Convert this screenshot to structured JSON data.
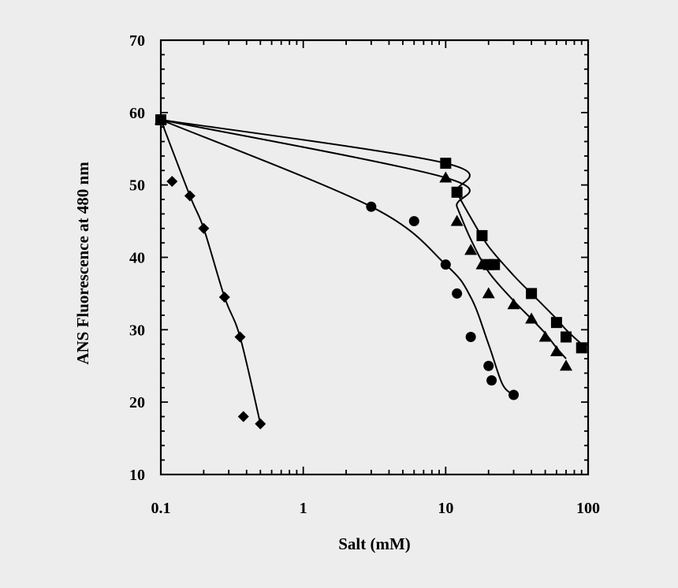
{
  "chart_data": {
    "type": "scatter",
    "xscale": "log",
    "title": "",
    "xlabel": "Salt (mM)",
    "ylabel": "ANS Fluorescence at 480 nm",
    "xlim": [
      0.1,
      100
    ],
    "ylim": [
      10,
      70
    ],
    "x_tick_labels": [
      "0.1",
      "1",
      "10",
      "100"
    ],
    "y_tick_labels": [
      "10",
      "20",
      "30",
      "40",
      "50",
      "60",
      "70"
    ],
    "grid": false,
    "legend": "none",
    "series": [
      {
        "name": "diamonds",
        "marker": "diamond",
        "points": [
          [
            0.1,
            59
          ],
          [
            0.12,
            50.5
          ],
          [
            0.16,
            48.5
          ],
          [
            0.2,
            44
          ],
          [
            0.28,
            34.5
          ],
          [
            0.36,
            29
          ],
          [
            0.38,
            18
          ],
          [
            0.5,
            17
          ]
        ],
        "curve": [
          [
            0.1,
            59
          ],
          [
            0.16,
            48.5
          ],
          [
            0.2,
            44
          ],
          [
            0.28,
            34.5
          ],
          [
            0.36,
            29
          ],
          [
            0.5,
            17
          ]
        ]
      },
      {
        "name": "circles",
        "marker": "circle",
        "points": [
          [
            0.1,
            59
          ],
          [
            3,
            47
          ],
          [
            6,
            45
          ],
          [
            10,
            39
          ],
          [
            12,
            35
          ],
          [
            15,
            29
          ],
          [
            20,
            25
          ],
          [
            21,
            23
          ],
          [
            30,
            21
          ]
        ],
        "curve": [
          [
            0.1,
            59
          ],
          [
            3,
            47
          ],
          [
            10,
            39
          ],
          [
            15,
            34.5
          ],
          [
            20,
            28
          ],
          [
            25,
            22.5
          ],
          [
            30,
            21
          ]
        ]
      },
      {
        "name": "triangles",
        "marker": "triangle",
        "points": [
          [
            0.1,
            59
          ],
          [
            10,
            51
          ],
          [
            12,
            45
          ],
          [
            15,
            41
          ],
          [
            18,
            39
          ],
          [
            20,
            35
          ],
          [
            30,
            33.5
          ],
          [
            40,
            31.5
          ],
          [
            50,
            29
          ],
          [
            60,
            27
          ],
          [
            70,
            25
          ]
        ],
        "curve": [
          [
            0.1,
            59
          ],
          [
            10,
            51
          ],
          [
            12,
            47
          ],
          [
            15,
            42.5
          ],
          [
            20,
            38
          ],
          [
            30,
            34
          ],
          [
            40,
            31.5
          ],
          [
            50,
            29.5
          ],
          [
            60,
            27.5
          ],
          [
            70,
            26
          ]
        ]
      },
      {
        "name": "squares",
        "marker": "square",
        "points": [
          [
            0.1,
            59
          ],
          [
            10,
            53
          ],
          [
            12,
            49
          ],
          [
            18,
            43
          ],
          [
            20,
            39
          ],
          [
            22,
            39
          ],
          [
            40,
            35
          ],
          [
            60,
            31
          ],
          [
            70,
            29
          ],
          [
            90,
            27.5
          ]
        ],
        "curve": [
          [
            0.1,
            59
          ],
          [
            10,
            53
          ],
          [
            12,
            49
          ],
          [
            15,
            45.5
          ],
          [
            20,
            41.5
          ],
          [
            30,
            37.5
          ],
          [
            40,
            35
          ],
          [
            60,
            31.5
          ],
          [
            70,
            30
          ],
          [
            90,
            28
          ]
        ]
      }
    ]
  }
}
